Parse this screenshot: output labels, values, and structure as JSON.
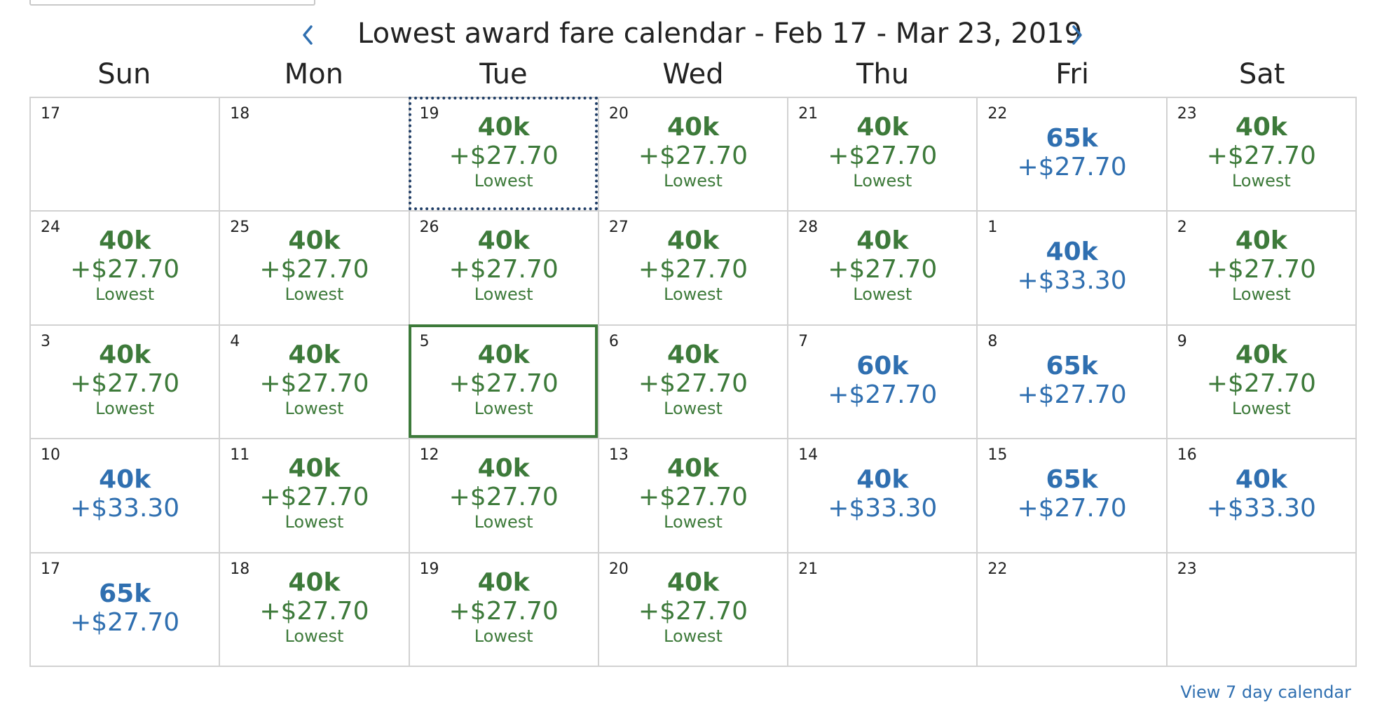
{
  "header": {
    "title": "Lowest award fare calendar - Feb 17 - Mar 23, 2019",
    "prev_icon": "chevron-left-icon",
    "next_icon": "chevron-right-icon"
  },
  "weekdays": [
    "Sun",
    "Mon",
    "Tue",
    "Wed",
    "Thu",
    "Fri",
    "Sat"
  ],
  "colors": {
    "lowest": "#3d7a3a",
    "regular": "#2f6fb0",
    "focus_outline": "#1f3d66"
  },
  "calendar": {
    "weeks": [
      [
        {
          "day": "17"
        },
        {
          "day": "18"
        },
        {
          "day": "19",
          "miles": "40k",
          "tax": "+$27.70",
          "flag": "Lowest",
          "focused": true
        },
        {
          "day": "20",
          "miles": "40k",
          "tax": "+$27.70",
          "flag": "Lowest"
        },
        {
          "day": "21",
          "miles": "40k",
          "tax": "+$27.70",
          "flag": "Lowest"
        },
        {
          "day": "22",
          "miles": "65k",
          "tax": "+$27.70",
          "flag": ""
        },
        {
          "day": "23",
          "miles": "40k",
          "tax": "+$27.70",
          "flag": "Lowest"
        }
      ],
      [
        {
          "day": "24",
          "miles": "40k",
          "tax": "+$27.70",
          "flag": "Lowest"
        },
        {
          "day": "25",
          "miles": "40k",
          "tax": "+$27.70",
          "flag": "Lowest"
        },
        {
          "day": "26",
          "miles": "40k",
          "tax": "+$27.70",
          "flag": "Lowest"
        },
        {
          "day": "27",
          "miles": "40k",
          "tax": "+$27.70",
          "flag": "Lowest"
        },
        {
          "day": "28",
          "miles": "40k",
          "tax": "+$27.70",
          "flag": "Lowest"
        },
        {
          "day": "1",
          "miles": "40k",
          "tax": "+$33.30",
          "flag": ""
        },
        {
          "day": "2",
          "miles": "40k",
          "tax": "+$27.70",
          "flag": "Lowest"
        }
      ],
      [
        {
          "day": "3",
          "miles": "40k",
          "tax": "+$27.70",
          "flag": "Lowest"
        },
        {
          "day": "4",
          "miles": "40k",
          "tax": "+$27.70",
          "flag": "Lowest"
        },
        {
          "day": "5",
          "miles": "40k",
          "tax": "+$27.70",
          "flag": "Lowest",
          "selected": true
        },
        {
          "day": "6",
          "miles": "40k",
          "tax": "+$27.70",
          "flag": "Lowest"
        },
        {
          "day": "7",
          "miles": "60k",
          "tax": "+$27.70",
          "flag": ""
        },
        {
          "day": "8",
          "miles": "65k",
          "tax": "+$27.70",
          "flag": ""
        },
        {
          "day": "9",
          "miles": "40k",
          "tax": "+$27.70",
          "flag": "Lowest"
        }
      ],
      [
        {
          "day": "10",
          "miles": "40k",
          "tax": "+$33.30",
          "flag": ""
        },
        {
          "day": "11",
          "miles": "40k",
          "tax": "+$27.70",
          "flag": "Lowest"
        },
        {
          "day": "12",
          "miles": "40k",
          "tax": "+$27.70",
          "flag": "Lowest"
        },
        {
          "day": "13",
          "miles": "40k",
          "tax": "+$27.70",
          "flag": "Lowest"
        },
        {
          "day": "14",
          "miles": "40k",
          "tax": "+$33.30",
          "flag": ""
        },
        {
          "day": "15",
          "miles": "65k",
          "tax": "+$27.70",
          "flag": ""
        },
        {
          "day": "16",
          "miles": "40k",
          "tax": "+$33.30",
          "flag": ""
        }
      ],
      [
        {
          "day": "17",
          "miles": "65k",
          "tax": "+$27.70",
          "flag": ""
        },
        {
          "day": "18",
          "miles": "40k",
          "tax": "+$27.70",
          "flag": "Lowest"
        },
        {
          "day": "19",
          "miles": "40k",
          "tax": "+$27.70",
          "flag": "Lowest"
        },
        {
          "day": "20",
          "miles": "40k",
          "tax": "+$27.70",
          "flag": "Lowest"
        },
        {
          "day": "21"
        },
        {
          "day": "22"
        },
        {
          "day": "23"
        }
      ]
    ]
  },
  "footer": {
    "view_7_day_label": "View 7 day calendar"
  }
}
